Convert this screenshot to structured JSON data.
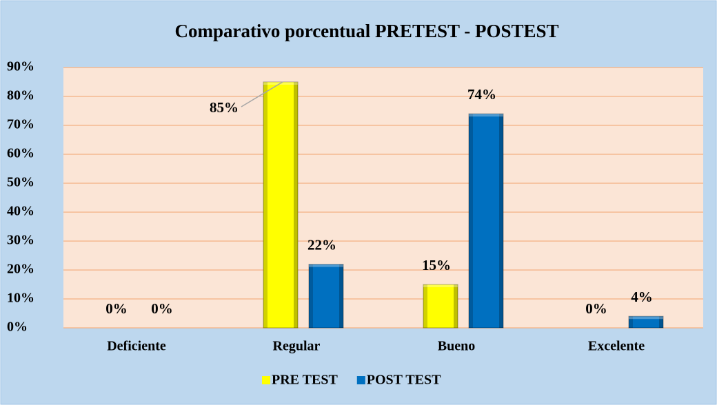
{
  "chart_data": {
    "type": "bar",
    "title": "Comparativo porcentual PRETEST - POSTEST",
    "categories": [
      "Deficiente",
      "Regular",
      "Bueno",
      "Excelente"
    ],
    "series": [
      {
        "name": "PRE TEST",
        "color": "#ffff00",
        "values": [
          0,
          85,
          15,
          0
        ],
        "value_labels": [
          "0%",
          "85%",
          "15%",
          "0%"
        ]
      },
      {
        "name": "POST TEST",
        "color": "#0070c0",
        "values": [
          0,
          22,
          74,
          4
        ],
        "value_labels": [
          "0%",
          "22%",
          "74%",
          "4%"
        ]
      }
    ],
    "ylim": [
      0,
      90
    ],
    "yticks": [
      {
        "value": 0,
        "label": "0%"
      },
      {
        "value": 10,
        "label": "10%"
      },
      {
        "value": 20,
        "label": "20%"
      },
      {
        "value": 30,
        "label": "30%"
      },
      {
        "value": 40,
        "label": "40%"
      },
      {
        "value": 50,
        "label": "50%"
      },
      {
        "value": 60,
        "label": "60%"
      },
      {
        "value": 70,
        "label": "70%"
      },
      {
        "value": 80,
        "label": "80%"
      },
      {
        "value": 90,
        "label": "90%"
      }
    ],
    "grid": true,
    "legend": "bottom"
  }
}
